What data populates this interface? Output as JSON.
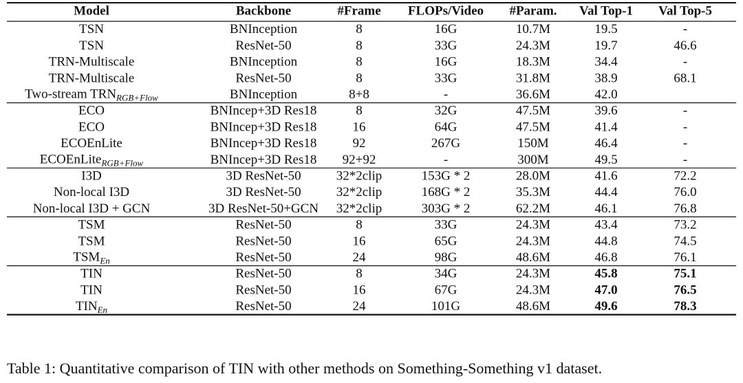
{
  "table": {
    "header": [
      "Model",
      "Backbone",
      "#Frame",
      "FLOPs/Video",
      "#Param.",
      "Val Top-1",
      "Val Top-5"
    ],
    "groups": [
      {
        "rows": [
          {
            "cells": [
              "TSN",
              "BNInception",
              "8",
              "16G",
              "10.7M",
              "19.5",
              "-"
            ]
          },
          {
            "cells": [
              "TSN",
              "ResNet-50",
              "8",
              "33G",
              "24.3M",
              "19.7",
              "46.6"
            ]
          },
          {
            "cells": [
              "TRN-Multiscale",
              "BNInception",
              "8",
              "16G",
              "18.3M",
              "34.4",
              "-"
            ]
          },
          {
            "cells": [
              "TRN-Multiscale",
              "ResNet-50",
              "8",
              "33G",
              "31.8M",
              "38.9",
              "68.1"
            ]
          },
          {
            "cells": [
              {
                "text": "Two-stream TRN",
                "sub": "RGB+Flow"
              },
              "BNInception",
              "8+8",
              "-",
              "36.6M",
              "42.0",
              null
            ]
          }
        ]
      },
      {
        "rows": [
          {
            "cells": [
              "ECO",
              "BNIncep+3D Res18",
              "8",
              "32G",
              "47.5M",
              "39.6",
              "-"
            ]
          },
          {
            "cells": [
              "ECO",
              "BNIncep+3D Res18",
              "16",
              "64G",
              "47.5M",
              "41.4",
              "-"
            ]
          },
          {
            "cells": [
              "ECOEnLite",
              "BNIncep+3D Res18",
              "92",
              "267G",
              "150M",
              "46.4",
              "-"
            ]
          },
          {
            "cells": [
              {
                "text": "ECOEnLite",
                "sub": "RGB+Flow"
              },
              "BNIncep+3D Res18",
              "92+92",
              "-",
              "300M",
              "49.5",
              "-"
            ]
          }
        ]
      },
      {
        "rows": [
          {
            "cells": [
              "I3D",
              "3D ResNet-50",
              "32*2clip",
              "153G * 2",
              "28.0M",
              "41.6",
              "72.2"
            ]
          },
          {
            "cells": [
              "Non-local I3D",
              "3D ResNet-50",
              "32*2clip",
              "168G * 2",
              "35.3M",
              "44.4",
              "76.0"
            ]
          },
          {
            "cells": [
              "Non-local I3D + GCN",
              "3D ResNet-50+GCN",
              "32*2clip",
              "303G * 2",
              "62.2M",
              "46.1",
              "76.8"
            ]
          }
        ]
      },
      {
        "rows": [
          {
            "cells": [
              "TSM",
              "ResNet-50",
              "8",
              "33G",
              "24.3M",
              "43.4",
              "73.2"
            ]
          },
          {
            "cells": [
              "TSM",
              "ResNet-50",
              "16",
              "65G",
              "24.3M",
              "44.8",
              "74.5"
            ]
          },
          {
            "cells": [
              {
                "text": "TSM",
                "sub": "En"
              },
              "ResNet-50",
              "24",
              "98G",
              "48.6M",
              "46.8",
              "76.1"
            ]
          }
        ]
      },
      {
        "bold_columns": [
          5,
          6
        ],
        "rows": [
          {
            "cells": [
              "TIN",
              "ResNet-50",
              "8",
              "34G",
              "24.3M",
              "45.8",
              "75.1"
            ]
          },
          {
            "cells": [
              "TIN",
              "ResNet-50",
              "16",
              "67G",
              "24.3M",
              "47.0",
              "76.5"
            ]
          },
          {
            "cells": [
              {
                "text": "TIN",
                "sub": "En"
              },
              "ResNet-50",
              "24",
              "101G",
              "48.6M",
              "49.6",
              "78.3"
            ]
          }
        ]
      }
    ]
  },
  "caption": "Table 1: Quantitative comparison of TIN with other methods on Something-Something v1 dataset."
}
